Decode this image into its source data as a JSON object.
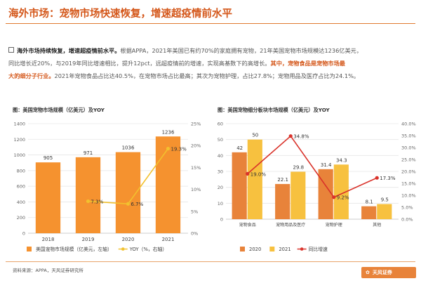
{
  "page": {
    "title": "海外市场：宠物市场快速恢复，增速超疫情前水平",
    "source": "资料来源：APPA，天风证券研究所",
    "logo_text": "天风证券",
    "accent_color": "#d4571a"
  },
  "summary": {
    "line1_lead": "海外市场持续恢复，增速超疫情前水平。",
    "line1_rest": "根据APPA，2021年美国已有约70%的家庭拥有宠物，21年美国宠物市场规模达1236亿美元，",
    "line2_a": "同比增长近20%，与2019年同比增速相比，提升12pct，远超疫情前的增速，实现高基数下的高增长。",
    "line2_b": "其中，宠物食品是宠物市场最",
    "line3_a": "大的细分子行业。",
    "line3_b": "2021年宠物食品占比达40.5%，在宠物市场占比最高；其次为宠物护理，占比27.8%；宠物用品及医疗占比为24.1%。"
  },
  "chart_data": [
    {
      "type": "bar",
      "heading": "图：美国宠物市场规模（亿美元）及YOY",
      "categories": [
        "2018",
        "2019",
        "2020",
        "2021"
      ],
      "series": [
        {
          "name": "美国宠物市场规模（亿美元，左轴）",
          "kind": "bar",
          "color": "#f5922f",
          "values": [
            905,
            971,
            1036,
            1236
          ],
          "labels": [
            "905",
            "971",
            "1036",
            "1236"
          ]
        },
        {
          "name": "YOY（%，右轴）",
          "kind": "line",
          "color": "#f2c12e",
          "values": [
            null,
            7.3,
            6.7,
            19.3
          ],
          "labels": [
            "",
            "7.3%",
            "6.7%",
            "19.3%"
          ]
        }
      ],
      "yleft": {
        "min": 0,
        "max": 1400,
        "ticks": [
          "0",
          "200",
          "400",
          "600",
          "800",
          "1000",
          "1200",
          "1400"
        ]
      },
      "yright": {
        "min": 0,
        "max": 25,
        "ticks": [
          "0%",
          "5%",
          "10%",
          "15%",
          "20%",
          "25%"
        ]
      },
      "legend_position": "bottom"
    },
    {
      "type": "bar",
      "heading": "图：美国宠物细分板块市场规模（亿美元）及YOY",
      "categories": [
        "宠物食品",
        "宠物用品及医疗",
        "宠物护理",
        "其他"
      ],
      "series": [
        {
          "name": "2020",
          "kind": "bar",
          "color": "#e8833a",
          "values": [
            42,
            22.1,
            31.4,
            8.1
          ],
          "labels": [
            "42",
            "22.1",
            "31.4",
            "8.1"
          ]
        },
        {
          "name": "2021",
          "kind": "bar",
          "color": "#f7c13f",
          "values": [
            50,
            29.8,
            34.3,
            9.5
          ],
          "labels": [
            "50",
            "29.8",
            "34.3",
            "9.5"
          ]
        },
        {
          "name": "同比增速",
          "kind": "line",
          "color": "#d9322a",
          "values": [
            19.0,
            34.8,
            9.2,
            17.3
          ],
          "labels": [
            "19.0%",
            "34.8%",
            "9.2%",
            "17.3%"
          ]
        }
      ],
      "yleft": {
        "min": 0,
        "max": 60,
        "ticks": [
          "0",
          "10",
          "20",
          "30",
          "40",
          "50",
          "60"
        ]
      },
      "yright": {
        "min": 0,
        "max": 40,
        "ticks": [
          "0.0%",
          "5.0%",
          "10.0%",
          "15.0%",
          "20.0%",
          "25.0%",
          "30.0%",
          "35.0%",
          "40.0%"
        ]
      },
      "legend_position": "bottom"
    }
  ]
}
